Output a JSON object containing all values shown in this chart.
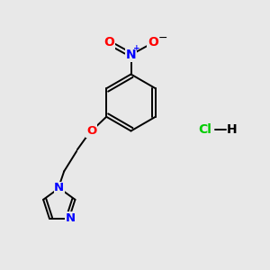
{
  "bg_color": "#e8e8e8",
  "bond_color": "#000000",
  "N_color": "#0000ff",
  "O_color": "#ff0000",
  "Cl_color": "#00cc00",
  "lw": 1.4,
  "fs": 9.5
}
